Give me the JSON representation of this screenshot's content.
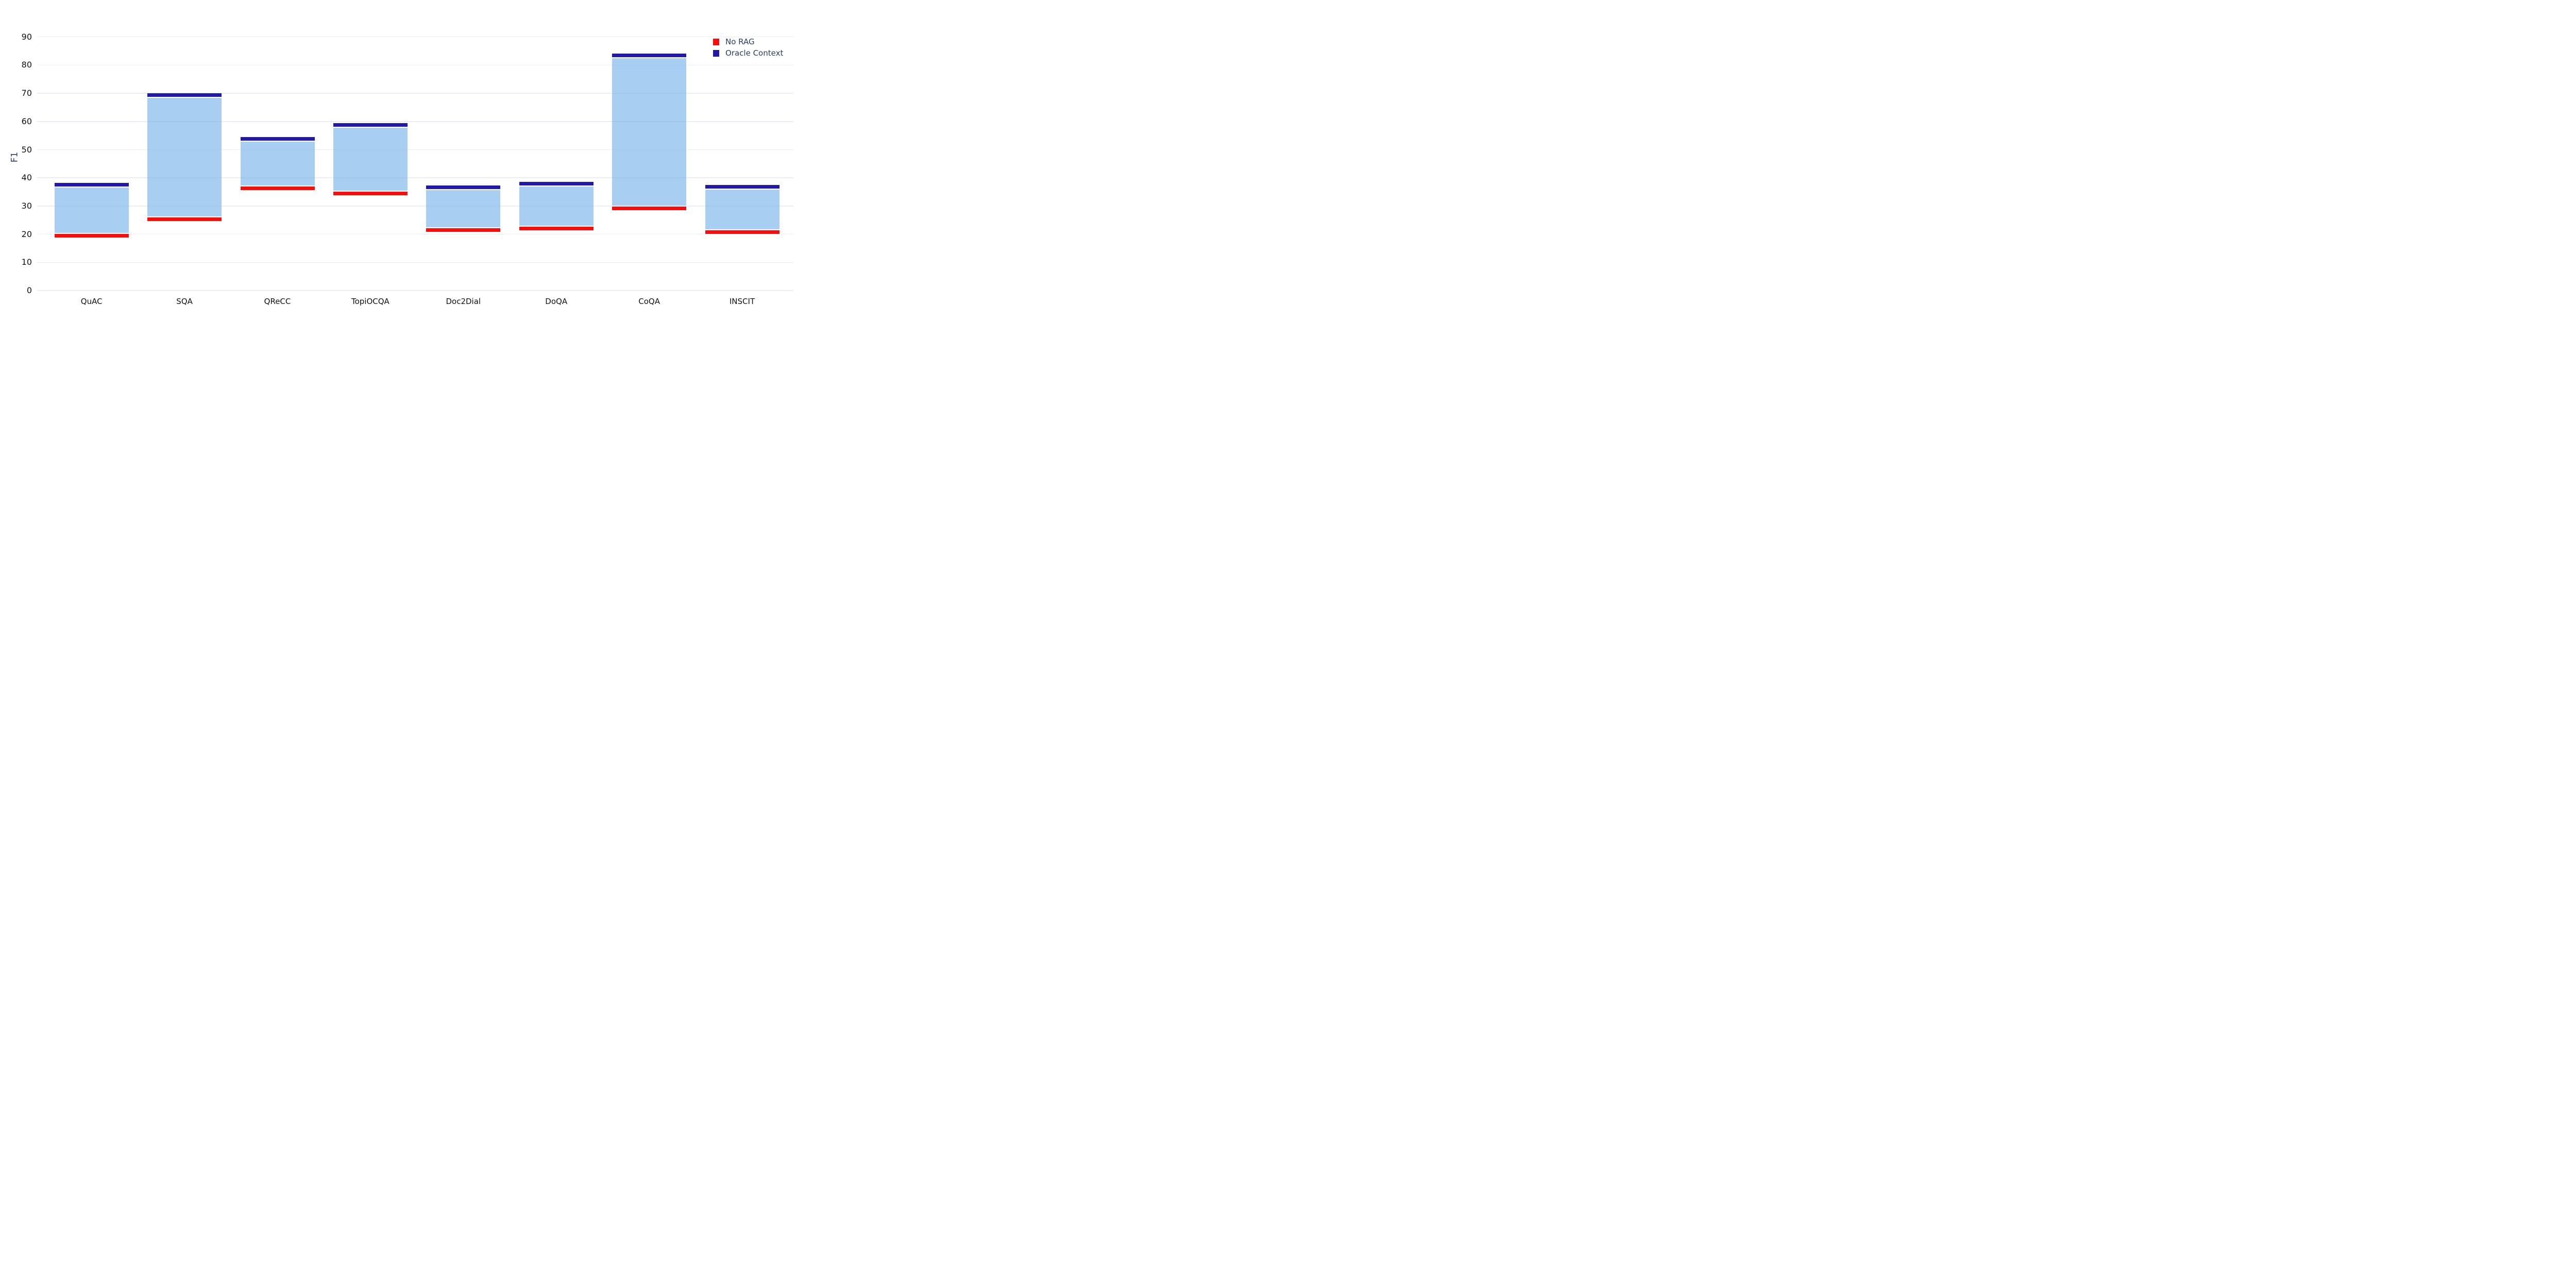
{
  "chart_data": {
    "type": "bar",
    "variant": "floating-range-bars",
    "title": "",
    "xlabel": "",
    "ylabel": "F1",
    "categories": [
      "QuAC",
      "SQA",
      "QReCC",
      "TopiOCQA",
      "Doc2Dial",
      "DoQA",
      "CoQA",
      "INSCIT"
    ],
    "series": [
      {
        "name": "No RAG",
        "role": "lower-bound-line",
        "color": "#f80c0c",
        "values": [
          19.4,
          25.4,
          36.2,
          34.5,
          21.4,
          22.0,
          29.2,
          20.8
        ]
      },
      {
        "name": "Oracle Context",
        "role": "upper-bound-line",
        "color": "#2319a8",
        "values": [
          37.6,
          69.3,
          53.9,
          58.7,
          36.7,
          37.9,
          83.5,
          36.9
        ]
      }
    ],
    "fill_between_color": "rgba(115,176,234,0.62)",
    "y_ticks": [
      0,
      10,
      20,
      30,
      40,
      50,
      60,
      70,
      80,
      90
    ],
    "ylim": [
      0,
      96
    ],
    "grid": true,
    "gridline_color": "#e8edf7",
    "background": "#ffffff",
    "tick_label_color": "#111111",
    "axis_title_color": "#2a3f5f",
    "legend": {
      "position": "top-right",
      "entries": [
        "No RAG",
        "Oracle Context"
      ]
    }
  }
}
